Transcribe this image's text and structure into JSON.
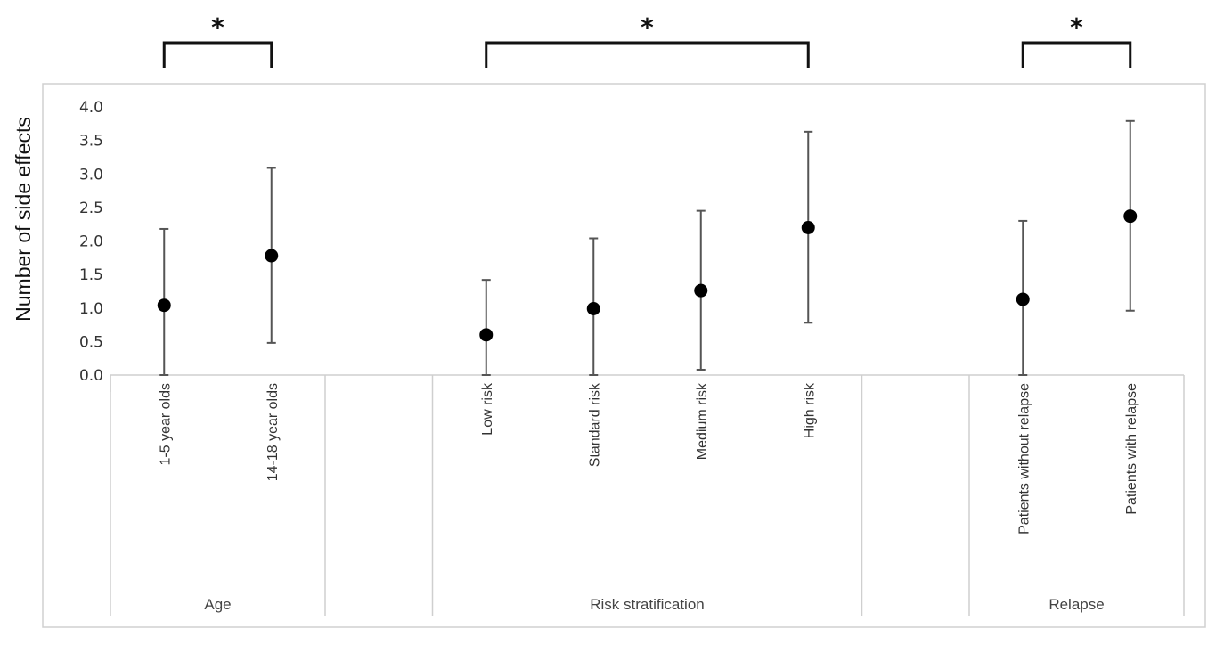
{
  "chart_data": {
    "type": "scatter",
    "title": "",
    "ylabel": "Number of side effects",
    "ylim": [
      0,
      4
    ],
    "yticks": [
      "0.0",
      "0.5",
      "1.0",
      "1.5",
      "2.0",
      "2.5",
      "3.0",
      "3.5",
      "4.0"
    ],
    "grid": false,
    "groups": [
      {
        "label": "Age",
        "categories": [
          "1-5 year olds",
          "14-18 year olds"
        ]
      },
      {
        "label": "Risk stratification",
        "categories": [
          "Low risk",
          "Standard risk",
          "Medium risk",
          "High risk"
        ]
      },
      {
        "label": "Relapse",
        "categories": [
          "Patients without relapse",
          "Patients with relapse"
        ]
      }
    ],
    "categories": [
      "1-5 year olds",
      "14-18 year olds",
      "Low risk",
      "Standard risk",
      "Medium risk",
      "High risk",
      "Patients without relapse",
      "Patients with relapse"
    ],
    "values": [
      1.04,
      1.78,
      0.6,
      0.99,
      1.26,
      2.2,
      1.13,
      2.37
    ],
    "error_low": [
      0.0,
      0.48,
      0.0,
      0.0,
      0.08,
      0.78,
      0.0,
      0.96
    ],
    "error_high": [
      2.18,
      3.09,
      1.42,
      2.04,
      2.45,
      3.63,
      2.3,
      3.79
    ],
    "significance": [
      {
        "from": "1-5 year olds",
        "to": "14-18 year olds",
        "label": "*"
      },
      {
        "from": "Low risk",
        "to": "High risk",
        "label": "*"
      },
      {
        "from": "Patients without relapse",
        "to": "Patients with relapse",
        "label": "*"
      }
    ]
  }
}
